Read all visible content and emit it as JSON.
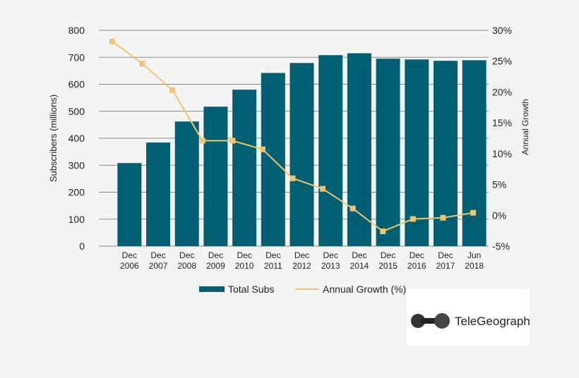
{
  "chart_data": {
    "type": "bar+line",
    "categories": [
      [
        "Dec",
        "2006"
      ],
      [
        "Dec",
        "2007"
      ],
      [
        "Dec",
        "2008"
      ],
      [
        "Dec",
        "2009"
      ],
      [
        "Dec",
        "2010"
      ],
      [
        "Dec",
        "2011"
      ],
      [
        "Dec",
        "2012"
      ],
      [
        "Dec",
        "2013"
      ],
      [
        "Dec",
        "2014"
      ],
      [
        "Dec",
        "2015"
      ],
      [
        "Dec",
        "2016"
      ],
      [
        "Dec",
        "2017"
      ],
      [
        "Jun",
        "2018"
      ]
    ],
    "series": [
      {
        "name": "Total Subs",
        "type": "bar",
        "axis": "left",
        "color": "#005f73",
        "values": [
          308,
          384,
          462,
          517,
          580,
          642,
          679,
          708,
          715,
          695,
          692,
          687,
          689
        ]
      },
      {
        "name": "Annual Growth (%)",
        "type": "line",
        "axis": "right",
        "color": "#f2c46d",
        "values": [
          28.2,
          24.6,
          20.3,
          12.1,
          12.1,
          10.7,
          6.0,
          4.3,
          1.1,
          -2.6,
          -0.6,
          -0.4,
          0.4
        ]
      }
    ],
    "ylabel": "Subscribers (millions)",
    "ylim": [
      0,
      800
    ],
    "yticks": [
      "0",
      "100",
      "200",
      "300",
      "400",
      "500",
      "600",
      "700",
      "800"
    ],
    "y2label": "Annual Growth",
    "y2lim": [
      -5,
      30
    ],
    "y2ticks": [
      "-5%",
      "0%",
      "5%",
      "10%",
      "15%",
      "20%",
      "25%",
      "30%"
    ],
    "grid": true,
    "legend": "bottom"
  },
  "logo": {
    "text": "TeleGeography"
  }
}
